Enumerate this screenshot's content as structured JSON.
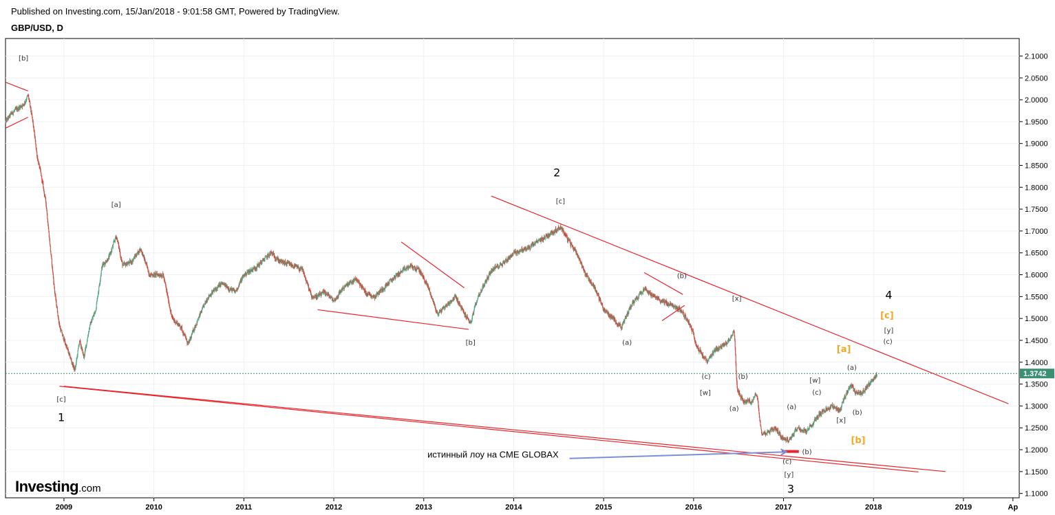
{
  "header": {
    "published": "Published on Investing.com, 15/Jan/2018 - 9:01:58 GMT, Powered by TradingView.",
    "symbol": "GBP/USD, D"
  },
  "branding": {
    "name": "Investing",
    "suffix": ".com"
  },
  "colors": {
    "up_candle": "#53a381",
    "down_candle": "#cd4a3c",
    "trendline": "#e8232b",
    "last_price_line": "#3b8f73",
    "arrow": "#7b8fd6",
    "orange_label": "#f5a623",
    "grid": "#eef0f3"
  },
  "chart_data": {
    "type": "candlestick",
    "x_axis": {
      "ticks": [
        "2009",
        "2010",
        "2011",
        "2012",
        "2013",
        "2014",
        "2015",
        "2016",
        "2017",
        "2018",
        "2019",
        "Ap"
      ],
      "range": [
        2008.35,
        2019.62
      ]
    },
    "y_axis": {
      "range": [
        1.09,
        2.14
      ],
      "ticks": [
        "2.1000",
        "2.0500",
        "2.0000",
        "1.9500",
        "1.9000",
        "1.8500",
        "1.8000",
        "1.7500",
        "1.7000",
        "1.6500",
        "1.6000",
        "1.5500",
        "1.5000",
        "1.4500",
        "1.4000",
        "1.3500",
        "1.3000",
        "1.2500",
        "1.2000",
        "1.1500",
        "1.1000"
      ]
    },
    "last_price": {
      "value": 1.3742,
      "label": "1.3742"
    },
    "price_path": [
      [
        2008.35,
        1.95
      ],
      [
        2008.42,
        1.97
      ],
      [
        2008.55,
        1.99
      ],
      [
        2008.6,
        2.01
      ],
      [
        2008.65,
        1.95
      ],
      [
        2008.7,
        1.87
      ],
      [
        2008.75,
        1.82
      ],
      [
        2008.8,
        1.76
      ],
      [
        2008.85,
        1.65
      ],
      [
        2008.9,
        1.55
      ],
      [
        2008.95,
        1.48
      ],
      [
        2009.0,
        1.45
      ],
      [
        2009.05,
        1.42
      ],
      [
        2009.12,
        1.38
      ],
      [
        2009.17,
        1.45
      ],
      [
        2009.22,
        1.41
      ],
      [
        2009.28,
        1.48
      ],
      [
        2009.35,
        1.52
      ],
      [
        2009.42,
        1.62
      ],
      [
        2009.5,
        1.64
      ],
      [
        2009.58,
        1.69
      ],
      [
        2009.65,
        1.62
      ],
      [
        2009.75,
        1.63
      ],
      [
        2009.85,
        1.66
      ],
      [
        2009.95,
        1.6
      ],
      [
        2010.1,
        1.6
      ],
      [
        2010.2,
        1.5
      ],
      [
        2010.3,
        1.48
      ],
      [
        2010.38,
        1.44
      ],
      [
        2010.45,
        1.48
      ],
      [
        2010.6,
        1.55
      ],
      [
        2010.75,
        1.58
      ],
      [
        2010.9,
        1.56
      ],
      [
        2011.0,
        1.6
      ],
      [
        2011.15,
        1.62
      ],
      [
        2011.3,
        1.65
      ],
      [
        2011.4,
        1.63
      ],
      [
        2011.55,
        1.62
      ],
      [
        2011.65,
        1.61
      ],
      [
        2011.75,
        1.55
      ],
      [
        2011.82,
        1.55
      ],
      [
        2011.9,
        1.56
      ],
      [
        2012.0,
        1.54
      ],
      [
        2012.1,
        1.57
      ],
      [
        2012.25,
        1.59
      ],
      [
        2012.35,
        1.56
      ],
      [
        2012.45,
        1.55
      ],
      [
        2012.55,
        1.57
      ],
      [
        2012.7,
        1.6
      ],
      [
        2012.85,
        1.62
      ],
      [
        2012.95,
        1.61
      ],
      [
        2013.05,
        1.57
      ],
      [
        2013.15,
        1.51
      ],
      [
        2013.25,
        1.53
      ],
      [
        2013.35,
        1.55
      ],
      [
        2013.45,
        1.51
      ],
      [
        2013.52,
        1.49
      ],
      [
        2013.6,
        1.55
      ],
      [
        2013.75,
        1.61
      ],
      [
        2013.9,
        1.63
      ],
      [
        2014.0,
        1.65
      ],
      [
        2014.15,
        1.66
      ],
      [
        2014.3,
        1.68
      ],
      [
        2014.45,
        1.7
      ],
      [
        2014.52,
        1.71
      ],
      [
        2014.6,
        1.68
      ],
      [
        2014.7,
        1.65
      ],
      [
        2014.8,
        1.6
      ],
      [
        2014.9,
        1.57
      ],
      [
        2015.0,
        1.52
      ],
      [
        2015.1,
        1.5
      ],
      [
        2015.2,
        1.48
      ],
      [
        2015.3,
        1.53
      ],
      [
        2015.45,
        1.57
      ],
      [
        2015.55,
        1.55
      ],
      [
        2015.65,
        1.54
      ],
      [
        2015.75,
        1.53
      ],
      [
        2015.85,
        1.52
      ],
      [
        2015.95,
        1.49
      ],
      [
        2016.05,
        1.43
      ],
      [
        2016.15,
        1.4
      ],
      [
        2016.25,
        1.43
      ],
      [
        2016.35,
        1.44
      ],
      [
        2016.45,
        1.47
      ],
      [
        2016.48,
        1.34
      ],
      [
        2016.55,
        1.31
      ],
      [
        2016.65,
        1.31
      ],
      [
        2016.7,
        1.33
      ],
      [
        2016.75,
        1.24
      ],
      [
        2016.82,
        1.24
      ],
      [
        2016.9,
        1.25
      ],
      [
        2016.98,
        1.23
      ],
      [
        2017.05,
        1.22
      ],
      [
        2017.15,
        1.25
      ],
      [
        2017.25,
        1.24
      ],
      [
        2017.35,
        1.27
      ],
      [
        2017.45,
        1.29
      ],
      [
        2017.55,
        1.3
      ],
      [
        2017.62,
        1.29
      ],
      [
        2017.7,
        1.33
      ],
      [
        2017.75,
        1.35
      ],
      [
        2017.8,
        1.33
      ],
      [
        2017.88,
        1.33
      ],
      [
        2017.95,
        1.35
      ],
      [
        2018.04,
        1.374
      ]
    ],
    "trendlines": [
      {
        "from": [
          2008.35,
          2.04
        ],
        "to": [
          2008.6,
          2.02
        ]
      },
      {
        "from": [
          2008.35,
          1.935
        ],
        "to": [
          2008.6,
          1.96
        ]
      },
      {
        "from": [
          2008.95,
          1.345
        ],
        "to": [
          2018.5,
          1.149
        ]
      },
      {
        "from": [
          2009.0,
          1.345
        ],
        "to": [
          2018.8,
          1.15
        ]
      },
      {
        "from": [
          2011.82,
          1.52
        ],
        "to": [
          2013.5,
          1.475
        ]
      },
      {
        "from": [
          2012.75,
          1.675
        ],
        "to": [
          2013.45,
          1.57
        ]
      },
      {
        "from": [
          2013.75,
          1.78
        ],
        "to": [
          2019.5,
          1.305
        ]
      },
      {
        "from": [
          2015.45,
          1.605
        ],
        "to": [
          2015.88,
          1.555
        ]
      },
      {
        "from": [
          2015.65,
          1.495
        ],
        "to": [
          2015.9,
          1.53
        ]
      }
    ],
    "low_marker": {
      "from": [
        2016.98,
        1.196
      ],
      "to": [
        2017.17,
        1.196
      ]
    },
    "annotation_arrow": {
      "from": [
        2014.62,
        1.18
      ],
      "to": [
        2017.03,
        1.195
      ]
    },
    "wave_labels": [
      {
        "text": "[b]",
        "x": 2008.55,
        "y": 2.09,
        "style": "small"
      },
      {
        "text": "[a]",
        "x": 2009.58,
        "y": 1.755,
        "style": "small"
      },
      {
        "text": "[c]",
        "x": 2008.97,
        "y": 1.31,
        "style": "small"
      },
      {
        "text": "1",
        "x": 2008.97,
        "y": 1.265,
        "style": "big"
      },
      {
        "text": "[b]",
        "x": 2013.52,
        "y": 1.44,
        "style": "small"
      },
      {
        "text": "2",
        "x": 2014.48,
        "y": 1.825,
        "style": "big"
      },
      {
        "text": "[c]",
        "x": 2014.52,
        "y": 1.763,
        "style": "small"
      },
      {
        "text": "(a)",
        "x": 2015.26,
        "y": 1.44,
        "style": "small"
      },
      {
        "text": "(b)",
        "x": 2015.87,
        "y": 1.592,
        "style": "small"
      },
      {
        "text": "[x]",
        "x": 2016.48,
        "y": 1.54,
        "style": "small"
      },
      {
        "text": "(c)",
        "x": 2016.14,
        "y": 1.362,
        "style": "small"
      },
      {
        "text": "(b)",
        "x": 2016.55,
        "y": 1.362,
        "style": "small"
      },
      {
        "text": "[w]",
        "x": 2016.13,
        "y": 1.325,
        "style": "small"
      },
      {
        "text": "(a)",
        "x": 2016.45,
        "y": 1.289,
        "style": "small"
      },
      {
        "text": "(a)",
        "x": 2017.09,
        "y": 1.293,
        "style": "small"
      },
      {
        "text": "(c)",
        "x": 2017.04,
        "y": 1.168,
        "style": "small"
      },
      {
        "text": "(b)",
        "x": 2017.26,
        "y": 1.19,
        "style": "small"
      },
      {
        "text": "[y]",
        "x": 2017.06,
        "y": 1.138,
        "style": "small"
      },
      {
        "text": "3",
        "x": 2017.08,
        "y": 1.102,
        "style": "big"
      },
      {
        "text": "[w]",
        "x": 2017.35,
        "y": 1.353,
        "style": "small"
      },
      {
        "text": "(c)",
        "x": 2017.37,
        "y": 1.326,
        "style": "small"
      },
      {
        "text": "[x]",
        "x": 2017.64,
        "y": 1.262,
        "style": "small"
      },
      {
        "text": "(b)",
        "x": 2017.82,
        "y": 1.28,
        "style": "small"
      },
      {
        "text": "(a)",
        "x": 2017.76,
        "y": 1.382,
        "style": "small"
      },
      {
        "text": "[a]",
        "x": 2017.67,
        "y": 1.423,
        "style": "orange"
      },
      {
        "text": "[b]",
        "x": 2017.83,
        "y": 1.215,
        "style": "orange"
      },
      {
        "text": "[c]",
        "x": 2018.15,
        "y": 1.5,
        "style": "orange"
      },
      {
        "text": "[y]",
        "x": 2018.17,
        "y": 1.467,
        "style": "small"
      },
      {
        "text": "(c)",
        "x": 2018.16,
        "y": 1.442,
        "style": "small"
      },
      {
        "text": "4",
        "x": 2018.17,
        "y": 1.545,
        "style": "big"
      }
    ],
    "annotation_text": {
      "text": "истинный лоу на CME GLOBAX",
      "x": 2013.77,
      "y": 1.182
    }
  }
}
